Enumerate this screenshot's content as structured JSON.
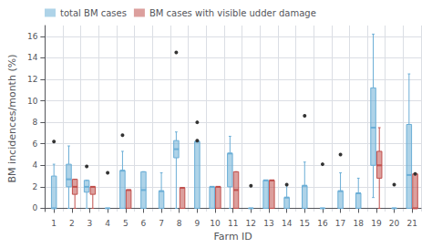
{
  "chart_data": {
    "type": "box",
    "xlabel": "Farm ID",
    "ylabel": "BM incidences/month (%)",
    "categories": [
      "1",
      "2",
      "3",
      "4",
      "5",
      "6",
      "7",
      "8",
      "9",
      "10",
      "11",
      "12",
      "13",
      "14",
      "15",
      "16",
      "17",
      "18",
      "19",
      "20",
      "21"
    ],
    "ylim": [
      -0.3,
      17
    ],
    "yticks": [
      0,
      2,
      4,
      6,
      8,
      10,
      12,
      14,
      16
    ],
    "grid": true,
    "legend": "upper left",
    "series": [
      {
        "name": "total BM cases",
        "color": "#6BAED6",
        "values": [
          [
            0.0,
            0.0,
            0.0,
            3.0,
            4.1
          ],
          [
            0.0,
            2.0,
            2.7,
            4.1,
            5.8
          ],
          [
            0.0,
            1.5,
            2.0,
            2.6,
            2.6
          ],
          [
            0.0,
            0.0,
            0.0,
            0.0,
            0.0
          ],
          [
            0.0,
            0.0,
            3.5,
            3.5,
            5.3
          ],
          [
            0.0,
            0.0,
            1.7,
            3.4,
            3.4
          ],
          [
            0.0,
            0.0,
            1.6,
            1.6,
            3.3
          ],
          [
            0.0,
            4.7,
            5.5,
            6.3,
            7.1
          ],
          [
            0.0,
            0.0,
            6.2,
            6.2,
            6.2
          ],
          [
            0.0,
            0.0,
            2.0,
            2.0,
            2.0
          ],
          [
            0.0,
            2.0,
            5.1,
            5.1,
            6.7
          ],
          [
            0.0,
            0.0,
            0.0,
            0.0,
            0.0
          ],
          [
            0.0,
            0.0,
            2.6,
            2.6,
            2.6
          ],
          [
            0.0,
            0.0,
            1.0,
            1.0,
            2.1
          ],
          [
            0.0,
            0.0,
            2.1,
            2.1,
            4.3
          ],
          [
            0.0,
            0.0,
            0.0,
            0.0,
            0.0
          ],
          [
            0.0,
            0.0,
            1.6,
            1.6,
            3.3
          ],
          [
            0.0,
            0.0,
            1.4,
            1.4,
            2.8
          ],
          [
            1.0,
            4.0,
            7.5,
            11.2,
            16.2
          ],
          [
            0.0,
            0.0,
            0.0,
            0.0,
            0.0
          ],
          [
            0.0,
            0.0,
            3.1,
            7.8,
            12.5
          ]
        ],
        "fliers": [
          [
            6.2
          ],
          [],
          [
            3.9
          ],
          [
            3.3
          ],
          [
            6.8
          ],
          [],
          [],
          [
            14.5
          ],
          [
            6.3,
            8.0
          ],
          [],
          [],
          [
            2.1
          ],
          [],
          [
            2.2
          ],
          [
            8.6
          ],
          [
            4.1
          ],
          [
            5.0
          ],
          [],
          [],
          [
            2.2
          ],
          []
        ]
      },
      {
        "name": "BM cases with visible udder damage",
        "color": "#C0504D",
        "values": [
          null,
          [
            0.0,
            1.3,
            2.0,
            2.7,
            2.7
          ],
          [
            0.0,
            1.3,
            2.0,
            2.0,
            2.0
          ],
          null,
          [
            0.0,
            0.0,
            1.7,
            1.7,
            1.7
          ],
          null,
          null,
          [
            0.0,
            0.0,
            1.9,
            1.9,
            1.9
          ],
          null,
          [
            0.0,
            0.0,
            2.0,
            2.0,
            2.0
          ],
          [
            0.0,
            0.0,
            1.7,
            3.4,
            3.4
          ],
          null,
          [
            0.0,
            0.0,
            2.6,
            2.6,
            2.6
          ],
          null,
          null,
          null,
          null,
          null,
          [
            0.0,
            2.8,
            4.0,
            5.3,
            7.5
          ],
          null,
          [
            0.0,
            0.0,
            0.0,
            3.2,
            3.2
          ]
        ],
        "fliers": [
          null,
          [],
          [],
          null,
          [],
          null,
          null,
          [],
          null,
          [],
          [],
          null,
          [],
          null,
          null,
          null,
          null,
          null,
          [],
          null,
          [
            3.2
          ]
        ]
      }
    ]
  }
}
